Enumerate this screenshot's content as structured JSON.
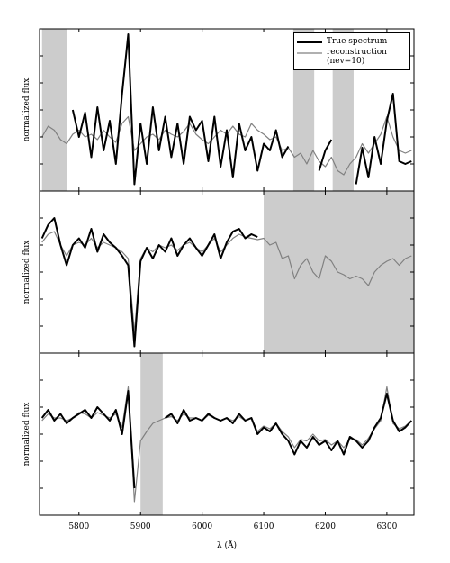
{
  "chart_data": [
    {
      "type": "line",
      "ylabel": "normalized flux",
      "legend": "upper right",
      "xlim": [
        5736,
        6344
      ],
      "xticks": [
        5800,
        5900,
        6000,
        6100,
        6200,
        6300
      ],
      "ylim": [
        0,
        1.2
      ],
      "yticks": [
        0.2,
        0.4,
        0.6,
        0.8,
        1.0
      ],
      "masked_regions": [
        [
          5740,
          5780
        ],
        [
          6148,
          6182
        ],
        [
          6212,
          6246
        ]
      ],
      "mask_color": "#cccccc",
      "x": [
        5740,
        5750,
        5760,
        5770,
        5780,
        5790,
        5800,
        5810,
        5820,
        5830,
        5840,
        5850,
        5860,
        5870,
        5880,
        5890,
        5900,
        5910,
        5920,
        5930,
        5940,
        5950,
        5960,
        5970,
        5980,
        5990,
        6000,
        6010,
        6020,
        6030,
        6040,
        6050,
        6060,
        6070,
        6080,
        6090,
        6100,
        6110,
        6120,
        6130,
        6140,
        6150,
        6160,
        6170,
        6180,
        6190,
        6200,
        6210,
        6220,
        6230,
        6240,
        6250,
        6260,
        6270,
        6280,
        6290,
        6300,
        6310,
        6320,
        6330,
        6340
      ],
      "series": [
        {
          "name": "reconstruction (nev=10)",
          "color": "#808080",
          "width": 1.2,
          "values": [
            0.4,
            0.48,
            0.45,
            0.38,
            0.35,
            0.42,
            0.45,
            0.4,
            0.42,
            0.38,
            0.45,
            0.4,
            0.36,
            0.5,
            0.55,
            0.3,
            0.35,
            0.4,
            0.42,
            0.38,
            0.45,
            0.42,
            0.4,
            0.44,
            0.5,
            0.42,
            0.38,
            0.35,
            0.4,
            0.45,
            0.42,
            0.48,
            0.42,
            0.4,
            0.5,
            0.45,
            0.42,
            0.38,
            0.4,
            0.3,
            0.32,
            0.25,
            0.28,
            0.2,
            0.3,
            0.22,
            0.18,
            0.25,
            0.15,
            0.12,
            0.2,
            0.25,
            0.35,
            0.28,
            0.35,
            0.42,
            0.55,
            0.4,
            0.3,
            0.28,
            0.3
          ]
        },
        {
          "name": "True spectrum",
          "color": "#000000",
          "width": 2,
          "values": [
            null,
            null,
            null,
            null,
            null,
            0.6,
            0.4,
            0.58,
            0.25,
            0.62,
            0.3,
            0.52,
            0.2,
            0.72,
            1.16,
            0.05,
            0.5,
            0.2,
            0.62,
            0.3,
            0.55,
            0.25,
            0.5,
            0.2,
            0.55,
            0.45,
            0.52,
            0.22,
            0.55,
            0.18,
            0.45,
            0.1,
            0.5,
            0.3,
            0.4,
            0.15,
            0.35,
            0.3,
            0.45,
            0.25,
            0.33,
            null,
            null,
            null,
            null,
            0.15,
            0.3,
            0.38,
            null,
            null,
            null,
            0.05,
            0.32,
            0.1,
            0.4,
            0.2,
            0.52,
            0.72,
            0.22,
            0.2,
            0.22
          ]
        }
      ]
    },
    {
      "type": "line",
      "ylabel": "normalized flux",
      "xlim": [
        5736,
        6344
      ],
      "xticks": [
        5800,
        5900,
        6000,
        6100,
        6200,
        6300
      ],
      "ylim": [
        0,
        1.2
      ],
      "yticks": [
        0.2,
        0.4,
        0.6,
        0.8,
        1.0
      ],
      "masked_regions": [
        [
          6100,
          6344
        ]
      ],
      "mask_color": "#cccccc",
      "x": [
        5740,
        5750,
        5760,
        5770,
        5780,
        5790,
        5800,
        5810,
        5820,
        5830,
        5840,
        5850,
        5860,
        5870,
        5880,
        5890,
        5900,
        5910,
        5920,
        5930,
        5940,
        5950,
        5960,
        5970,
        5980,
        5990,
        6000,
        6010,
        6020,
        6030,
        6040,
        6050,
        6060,
        6070,
        6080,
        6090,
        6100,
        6110,
        6120,
        6130,
        6140,
        6150,
        6160,
        6170,
        6180,
        6190,
        6200,
        6210,
        6220,
        6230,
        6240,
        6250,
        6260,
        6270,
        6280,
        6290,
        6300,
        6310,
        6320,
        6330,
        6340
      ],
      "series": [
        {
          "color": "#808080",
          "width": 1.2,
          "values": [
            0.82,
            0.88,
            0.9,
            0.8,
            0.72,
            0.8,
            0.82,
            0.8,
            0.85,
            0.78,
            0.82,
            0.8,
            0.78,
            0.75,
            0.7,
            0.15,
            0.7,
            0.78,
            0.75,
            0.8,
            0.78,
            0.8,
            0.76,
            0.8,
            0.82,
            0.78,
            0.75,
            0.8,
            0.85,
            0.75,
            0.8,
            0.85,
            0.88,
            0.86,
            0.85,
            0.84,
            0.85,
            0.8,
            0.82,
            0.7,
            0.72,
            0.55,
            0.65,
            0.7,
            0.6,
            0.55,
            0.72,
            0.68,
            0.6,
            0.58,
            0.55,
            0.57,
            0.55,
            0.5,
            0.6,
            0.65,
            0.68,
            0.7,
            0.65,
            0.7,
            0.72
          ]
        },
        {
          "color": "#000000",
          "width": 2,
          "values": [
            0.85,
            0.95,
            1.0,
            0.8,
            0.65,
            0.8,
            0.85,
            0.78,
            0.92,
            0.75,
            0.88,
            0.82,
            0.78,
            0.72,
            0.65,
            0.05,
            0.68,
            0.78,
            0.7,
            0.8,
            0.75,
            0.85,
            0.72,
            0.8,
            0.85,
            0.78,
            0.72,
            0.8,
            0.88,
            0.7,
            0.82,
            0.9,
            0.92,
            0.85,
            0.88,
            0.86,
            null,
            null,
            null,
            null,
            null,
            null,
            null,
            null,
            null,
            null,
            null,
            null,
            null,
            null,
            null,
            null,
            null,
            null,
            null,
            null,
            null,
            null,
            null,
            null,
            null
          ]
        }
      ]
    },
    {
      "type": "line",
      "ylabel": "normalized flux",
      "xlabel": "λ (Å)",
      "xlim": [
        5736,
        6344
      ],
      "xticks": [
        5800,
        5900,
        6000,
        6100,
        6200,
        6300
      ],
      "ylim": [
        0,
        1.2
      ],
      "yticks": [
        0.2,
        0.4,
        0.6,
        0.8,
        1.0
      ],
      "masked_regions": [
        [
          5900,
          5936
        ]
      ],
      "mask_color": "#cccccc",
      "x": [
        5740,
        5750,
        5760,
        5770,
        5780,
        5790,
        5800,
        5810,
        5820,
        5830,
        5840,
        5850,
        5860,
        5870,
        5880,
        5890,
        5900,
        5910,
        5920,
        5930,
        5940,
        5950,
        5960,
        5970,
        5980,
        5990,
        6000,
        6010,
        6020,
        6030,
        6040,
        6050,
        6060,
        6070,
        6080,
        6090,
        6100,
        6110,
        6120,
        6130,
        6140,
        6150,
        6160,
        6170,
        6180,
        6190,
        6200,
        6210,
        6220,
        6230,
        6240,
        6250,
        6260,
        6270,
        6280,
        6290,
        6300,
        6310,
        6320,
        6330,
        6340
      ],
      "series": [
        {
          "color": "#808080",
          "width": 1.2,
          "values": [
            0.7,
            0.75,
            0.72,
            0.72,
            0.7,
            0.72,
            0.76,
            0.75,
            0.72,
            0.76,
            0.74,
            0.72,
            0.75,
            0.65,
            0.95,
            0.1,
            0.55,
            0.62,
            0.68,
            0.7,
            0.72,
            0.73,
            0.7,
            0.75,
            0.72,
            0.72,
            0.7,
            0.74,
            0.72,
            0.7,
            0.72,
            0.7,
            0.73,
            0.7,
            0.72,
            0.62,
            0.66,
            0.64,
            0.68,
            0.62,
            0.58,
            0.5,
            0.56,
            0.55,
            0.6,
            0.55,
            0.56,
            0.52,
            0.55,
            0.5,
            0.56,
            0.56,
            0.52,
            0.57,
            0.64,
            0.7,
            0.95,
            0.68,
            0.64,
            0.66,
            0.7
          ]
        },
        {
          "color": "#000000",
          "width": 2,
          "values": [
            0.72,
            0.78,
            0.7,
            0.75,
            0.68,
            0.72,
            0.75,
            0.78,
            0.72,
            0.8,
            0.75,
            0.7,
            0.78,
            0.6,
            0.92,
            0.2,
            null,
            null,
            null,
            null,
            0.72,
            0.75,
            0.68,
            0.78,
            0.7,
            0.72,
            0.7,
            0.75,
            0.72,
            0.7,
            0.72,
            0.68,
            0.75,
            0.7,
            0.72,
            0.6,
            0.65,
            0.62,
            0.68,
            0.6,
            0.55,
            0.45,
            0.55,
            0.5,
            0.58,
            0.52,
            0.55,
            0.48,
            0.55,
            0.45,
            0.58,
            0.55,
            0.5,
            0.55,
            0.65,
            0.72,
            0.9,
            0.7,
            0.62,
            0.65,
            0.7
          ]
        }
      ]
    }
  ]
}
